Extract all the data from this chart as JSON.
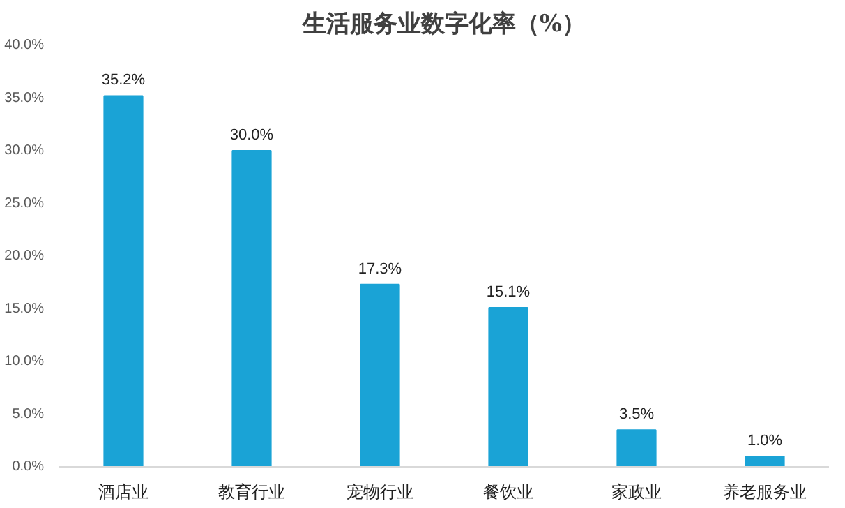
{
  "chart_data": {
    "type": "bar",
    "title": "生活服务业数字化率（%）",
    "categories": [
      "酒店业",
      "教育行业",
      "宠物行业",
      "餐饮业",
      "家政业",
      "养老服务业"
    ],
    "values": [
      35.2,
      30.0,
      17.3,
      15.1,
      3.5,
      1.0
    ],
    "value_labels": [
      "35.2%",
      "30.0%",
      "17.3%",
      "15.1%",
      "3.5%",
      "1.0%"
    ],
    "color": "#1aa3d6",
    "ylim": [
      0,
      40
    ],
    "yticks": [
      {
        "value": 0,
        "label": "0.0%"
      },
      {
        "value": 5,
        "label": "5.0%"
      },
      {
        "value": 10,
        "label": "10.0%"
      },
      {
        "value": 15,
        "label": "15.0%"
      },
      {
        "value": 20,
        "label": "20.0%"
      },
      {
        "value": 25,
        "label": "25.0%"
      },
      {
        "value": 30,
        "label": "30.0%"
      },
      {
        "value": 35,
        "label": "35.0%"
      },
      {
        "value": 40,
        "label": "40.0%"
      }
    ],
    "grid": false
  }
}
